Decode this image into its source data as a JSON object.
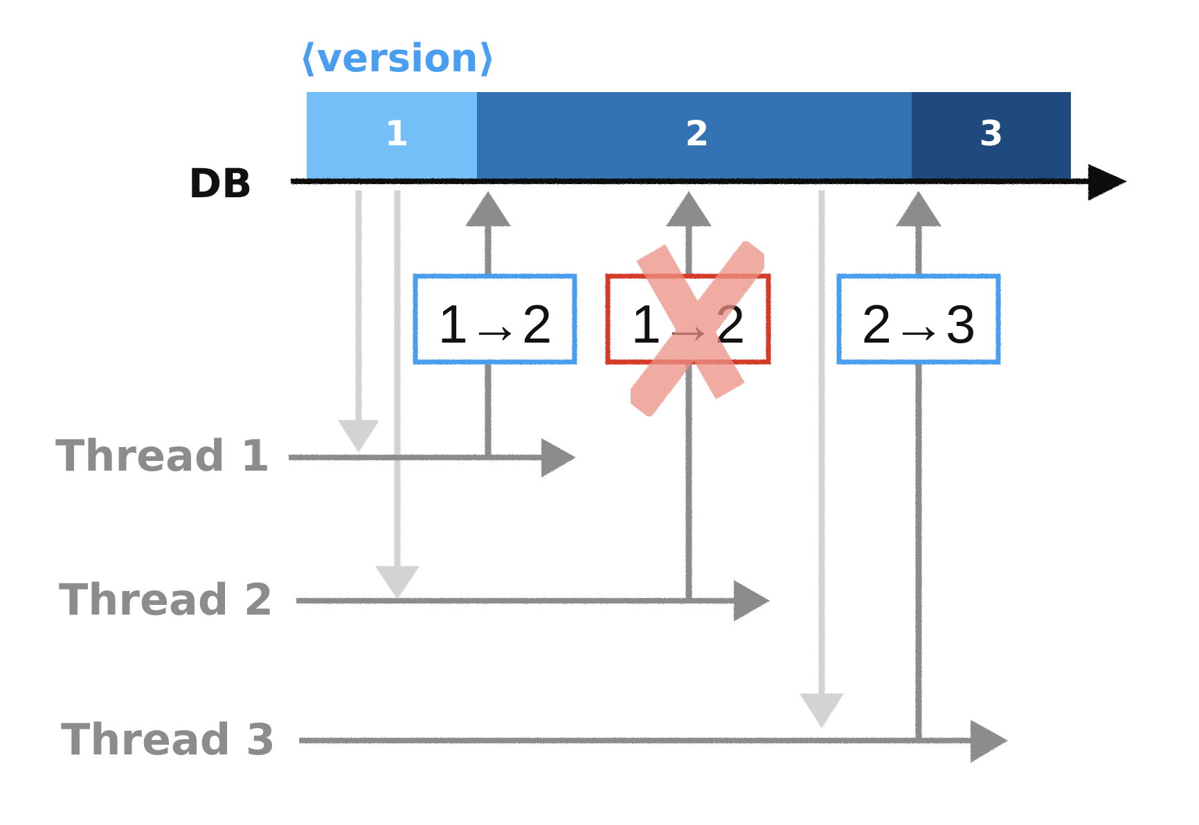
{
  "title": "⟨version⟩",
  "db_label": "DB",
  "versions": [
    {
      "label": "1",
      "color": "#74bff8"
    },
    {
      "label": "2",
      "color": "#3373b4"
    },
    {
      "label": "3",
      "color": "#1f4a7d"
    }
  ],
  "threads": [
    {
      "label": "Thread 1"
    },
    {
      "label": "Thread 2"
    },
    {
      "label": "Thread 3"
    }
  ],
  "updates": [
    {
      "label": "1→2",
      "status": "success",
      "border_color": "#4a9ef0"
    },
    {
      "label": "1→2",
      "status": "failed",
      "border_color": "#d63a2a"
    },
    {
      "label": "2→3",
      "status": "success",
      "border_color": "#4a9ef0"
    }
  ],
  "colors": {
    "title": "#4a9ef0",
    "db_axis": "#111111",
    "thread_label": "#8c8c8c",
    "read_arrow": "#d3d3d3",
    "write_arrow": "#8c8c8c",
    "fail_cross": "#f0a69e"
  }
}
